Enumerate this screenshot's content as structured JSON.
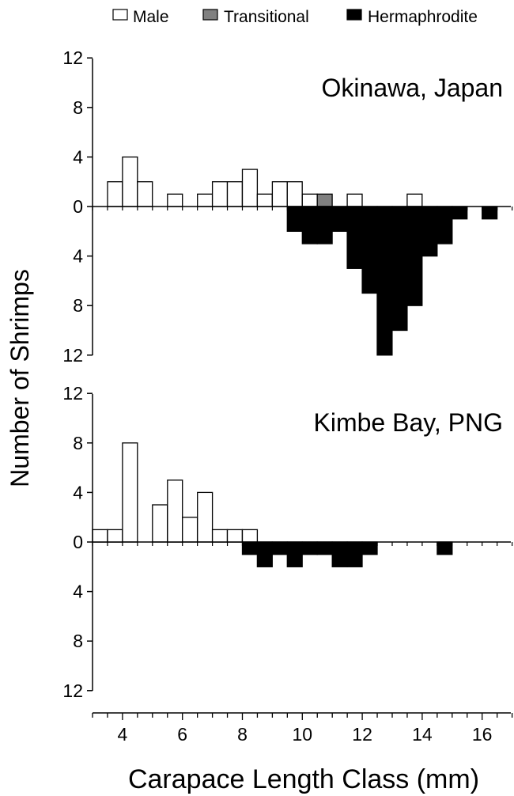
{
  "legend": {
    "items": [
      {
        "label": "Male",
        "color": "#ffffff"
      },
      {
        "label": "Transitional",
        "color": "#808080"
      },
      {
        "label": "Hermaphrodite",
        "color": "#000000"
      }
    ]
  },
  "ylabel": "Number of Shrimps",
  "xlabel": "Carapace Length Class (mm)",
  "chart_data": [
    {
      "type": "bar",
      "title": "Okinawa, Japan",
      "x_unit": "mm",
      "bin_width": 0.5,
      "ylim": [
        -12,
        12
      ],
      "yticks": [
        12,
        8,
        4,
        0,
        4,
        8,
        12
      ],
      "note": "positive values plotted above zero line; hermaphrodite counts plotted below zero line",
      "series": [
        {
          "name": "Male",
          "color": "#ffffff",
          "direction": "up",
          "x": [
            3.75,
            4.25,
            4.75,
            5.75,
            6.75,
            7.25,
            7.75,
            8.25,
            8.75,
            9.25,
            9.75,
            10.25,
            11.75,
            13.75
          ],
          "values": [
            2,
            4,
            2,
            1,
            1,
            2,
            2,
            3,
            1,
            2,
            2,
            1,
            1,
            1
          ]
        },
        {
          "name": "Transitional",
          "color": "#808080",
          "direction": "up",
          "x": [
            10.75
          ],
          "values": [
            1
          ]
        },
        {
          "name": "Hermaphrodite",
          "color": "#000000",
          "direction": "down",
          "x": [
            9.75,
            10.25,
            10.75,
            11.25,
            11.75,
            12.25,
            12.75,
            13.25,
            13.75,
            14.25,
            14.75,
            15.25,
            16.25
          ],
          "values": [
            2,
            3,
            3,
            2,
            5,
            7,
            12,
            10,
            8,
            4,
            3,
            1,
            1
          ]
        }
      ]
    },
    {
      "type": "bar",
      "title": "Kimbe Bay, PNG",
      "x_unit": "mm",
      "bin_width": 0.5,
      "ylim": [
        -12,
        12
      ],
      "yticks": [
        12,
        8,
        4,
        0,
        4,
        8,
        12
      ],
      "xlim": [
        3,
        17
      ],
      "xticks": [
        4,
        6,
        8,
        10,
        12,
        14,
        16
      ],
      "series": [
        {
          "name": "Male",
          "color": "#ffffff",
          "direction": "up",
          "x": [
            3.25,
            3.75,
            4.25,
            5.25,
            5.75,
            6.25,
            6.75,
            7.25,
            7.75,
            8.25
          ],
          "values": [
            1,
            1,
            8,
            3,
            5,
            2,
            4,
            1,
            1,
            1
          ]
        },
        {
          "name": "Hermaphrodite",
          "color": "#000000",
          "direction": "down",
          "x": [
            8.25,
            8.75,
            9.25,
            9.75,
            10.25,
            10.75,
            11.25,
            11.75,
            12.25,
            14.75
          ],
          "values": [
            1,
            2,
            1,
            2,
            1,
            1,
            2,
            2,
            1,
            1
          ]
        }
      ]
    }
  ]
}
